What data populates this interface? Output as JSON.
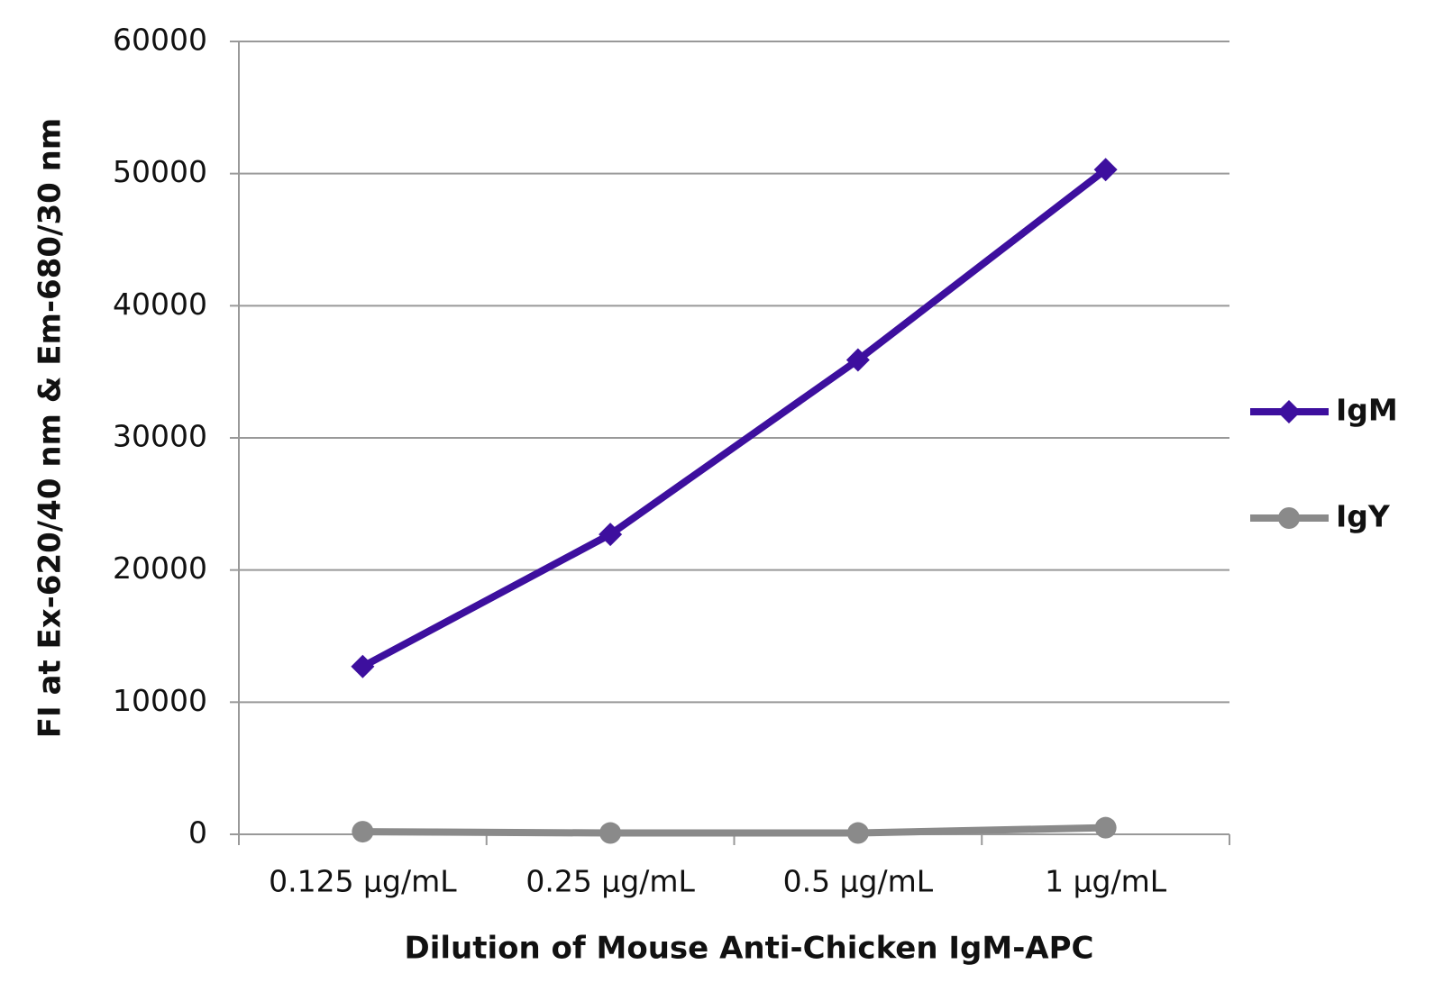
{
  "chart_data": {
    "type": "line",
    "x_label": "Dilution of Mouse Anti-Chicken IgM-APC",
    "y_label": "FI at Ex-620/40 nm & Em-680/30 nm",
    "categories": [
      "0.125 µg/mL",
      "0.25 µg/mL",
      "0.5 µg/mL",
      "1 µg/mL"
    ],
    "series": [
      {
        "name": "IgM",
        "color": "#3d0f9e",
        "marker": "diamond",
        "values": [
          12700,
          22700,
          35900,
          50300
        ]
      },
      {
        "name": "IgY",
        "color": "#8a8a8a",
        "marker": "circle",
        "values": [
          200,
          100,
          100,
          500
        ]
      }
    ],
    "ylim": [
      0,
      60000
    ],
    "yticks": [
      0,
      10000,
      20000,
      30000,
      40000,
      50000,
      60000
    ],
    "grid": true,
    "legend": "right"
  }
}
